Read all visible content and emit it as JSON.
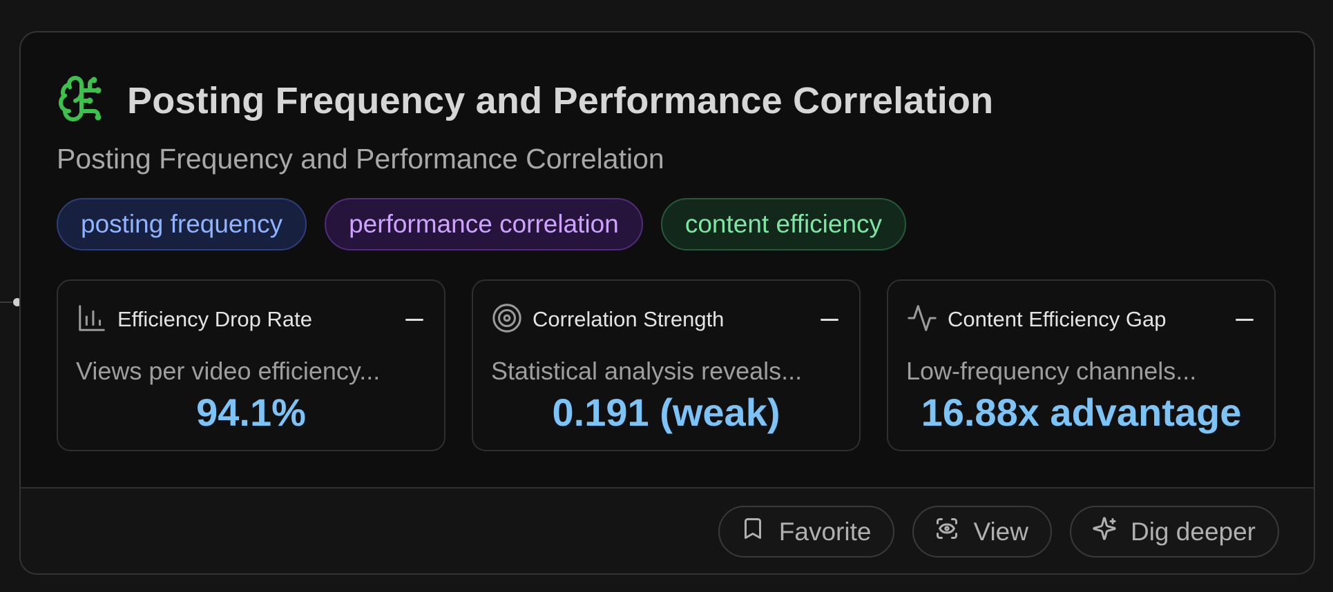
{
  "card": {
    "title": "Posting Frequency and Performance Correlation",
    "subtitle": "Posting Frequency and Performance Correlation",
    "icon": "brain-circuit-icon",
    "accent_color": "#3cc24a"
  },
  "tags": [
    {
      "label": "posting frequency",
      "color": "blue"
    },
    {
      "label": "performance correlation",
      "color": "purple"
    },
    {
      "label": "content efficiency",
      "color": "green"
    }
  ],
  "metrics": [
    {
      "icon": "bar-chart-icon",
      "title": "Efficiency Drop Rate",
      "description": "Views per video efficiency...",
      "value": "94.1%"
    },
    {
      "icon": "target-icon",
      "title": "Correlation Strength",
      "description": "Statistical analysis reveals...",
      "value": "0.191 (weak)"
    },
    {
      "icon": "activity-icon",
      "title": "Content Efficiency Gap",
      "description": "Low-frequency channels...",
      "value": "16.88x advantage"
    }
  ],
  "actions": [
    {
      "icon": "bookmark-icon",
      "label": "Favorite"
    },
    {
      "icon": "eye-scan-icon",
      "label": "View"
    },
    {
      "icon": "sparkles-icon",
      "label": "Dig deeper"
    }
  ]
}
